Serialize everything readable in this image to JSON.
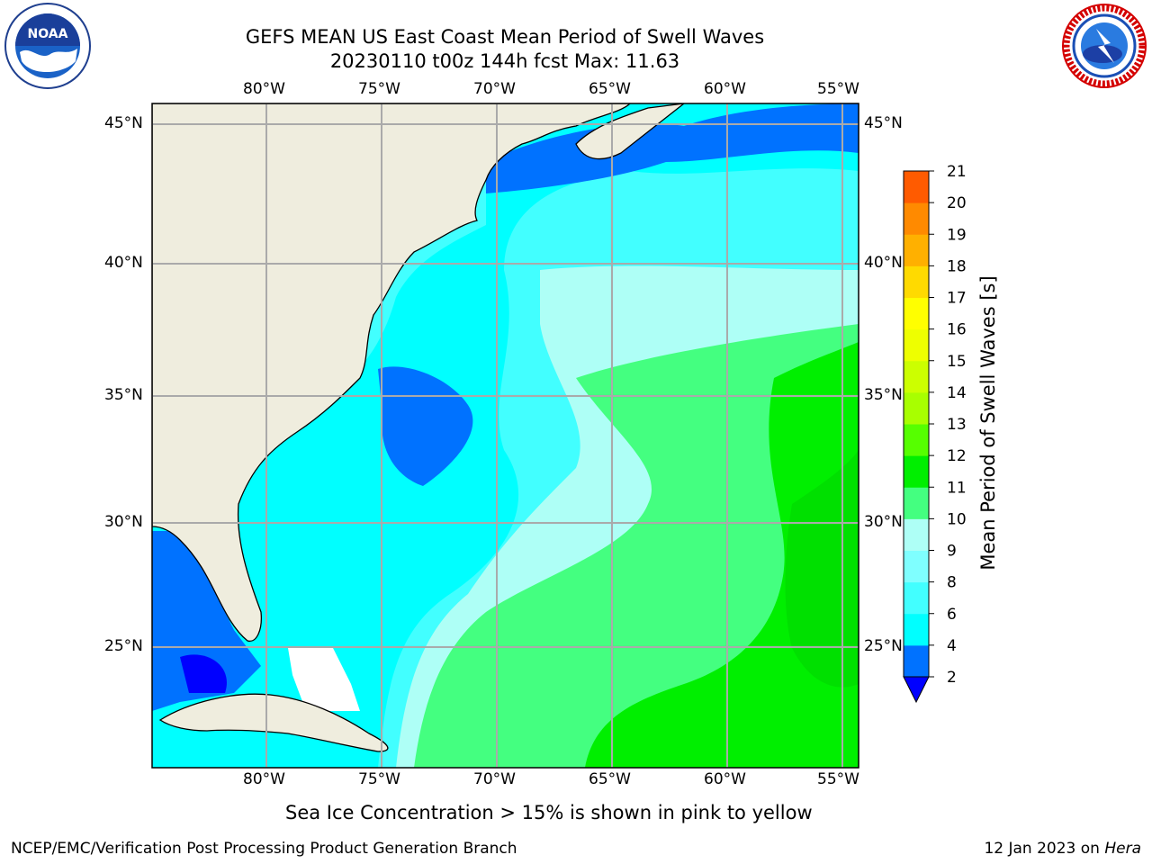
{
  "header": {
    "title_line1": "GEFS MEAN US East Coast Mean Period of Swell Waves",
    "title_line2": "20230110 t00z 144h fcst   Max: 11.63"
  },
  "logos": {
    "left": {
      "icon": "noaa-logo-icon",
      "text": "NOAA"
    },
    "right": {
      "icon": "nws-logo-icon",
      "text": "NATIONAL WEATHER SERVICE"
    }
  },
  "map": {
    "lon_ticks": [
      "80°W",
      "75°W",
      "70°W",
      "65°W",
      "60°W",
      "55°W"
    ],
    "lat_ticks": [
      "45°N",
      "40°N",
      "35°N",
      "30°N",
      "25°N"
    ],
    "grid": true,
    "land_color": "#efedde",
    "gridline_color": "#aaaaaa"
  },
  "colorbar": {
    "label": "Mean Period of Swell Waves [s]",
    "tick_labels": [
      "2",
      "4",
      "6",
      "8",
      "9",
      "10",
      "11",
      "12",
      "13",
      "14",
      "15",
      "16",
      "17",
      "18",
      "19",
      "20",
      "21"
    ],
    "colors": [
      "#0072ff",
      "#00ffff",
      "#42ffff",
      "#7fffff",
      "#aefff6",
      "#44ff80",
      "#00ef00",
      "#56ff00",
      "#a8ff00",
      "#ccff00",
      "#eeff00",
      "#ffff00",
      "#ffda00",
      "#ffb000",
      "#ff8a00",
      "#ff5b00",
      "#ff2a00",
      "#ff0000"
    ],
    "under_color": "#0000ff"
  },
  "footer": {
    "note": "Sea Ice Concentration > 15% is shown in pink to yellow",
    "left": "NCEP/EMC/Verification Post Processing Product Generation Branch",
    "right_date": "12 Jan 2023 on ",
    "right_host": "Hera"
  }
}
